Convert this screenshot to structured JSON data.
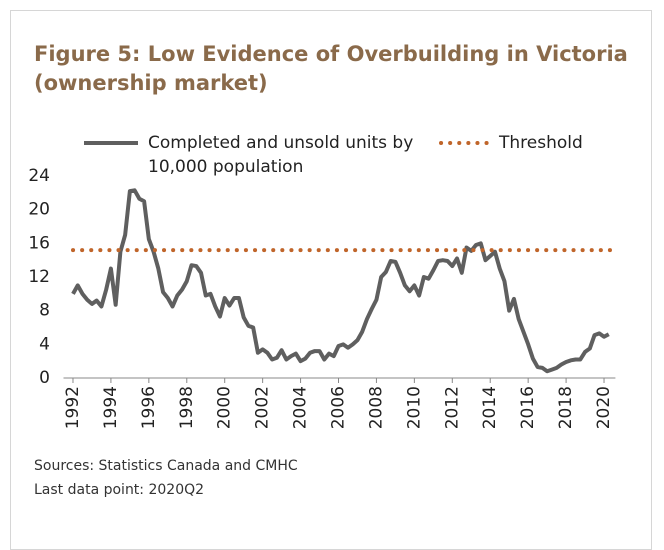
{
  "chart_data": {
    "type": "line",
    "title": "Figure 5: Low Evidence of Overbuilding in Victoria (ownership market)",
    "notes": [
      "Sources: Statistics Canada and CMHC",
      "Last data point: 2020Q2"
    ],
    "x": [
      1992,
      1992.25,
      1992.5,
      1992.75,
      1993,
      1993.25,
      1993.5,
      1993.75,
      1994,
      1994.25,
      1994.5,
      1994.75,
      1995,
      1995.25,
      1995.5,
      1995.75,
      1996,
      1996.25,
      1996.5,
      1996.75,
      1997,
      1997.25,
      1997.5,
      1997.75,
      1998,
      1998.25,
      1998.5,
      1998.75,
      1999,
      1999.25,
      1999.5,
      1999.75,
      2000,
      2000.25,
      2000.5,
      2000.75,
      2001,
      2001.25,
      2001.5,
      2001.75,
      2002,
      2002.25,
      2002.5,
      2002.75,
      2003,
      2003.25,
      2003.5,
      2003.75,
      2004,
      2004.25,
      2004.5,
      2004.75,
      2005,
      2005.25,
      2005.5,
      2005.75,
      2006,
      2006.25,
      2006.5,
      2006.75,
      2007,
      2007.25,
      2007.5,
      2007.75,
      2008,
      2008.25,
      2008.5,
      2008.75,
      2009,
      2009.25,
      2009.5,
      2009.75,
      2010,
      2010.25,
      2010.5,
      2010.75,
      2011,
      2011.25,
      2011.5,
      2011.75,
      2012,
      2012.25,
      2012.5,
      2012.75,
      2013,
      2013.25,
      2013.5,
      2013.75,
      2014,
      2014.25,
      2014.5,
      2014.75,
      2015,
      2015.25,
      2015.5,
      2015.75,
      2016,
      2016.25,
      2016.5,
      2016.75,
      2017,
      2017.25,
      2017.5,
      2017.75,
      2018,
      2018.25,
      2018.5,
      2018.75,
      2019,
      2019.25,
      2019.5,
      2019.75,
      2020,
      2020.25
    ],
    "series": [
      {
        "name": "Completed and unsold units by 10,000 population",
        "color": "#5f5f5f",
        "values": [
          10,
          11,
          10,
          9.3,
          8.8,
          9.2,
          8.5,
          10.5,
          13,
          8.7,
          15,
          17,
          22.2,
          22.3,
          21.3,
          21,
          16.5,
          15,
          13,
          10.2,
          9.5,
          8.5,
          9.8,
          10.5,
          11.5,
          13.4,
          13.3,
          12.5,
          9.8,
          10,
          8.5,
          7.3,
          9.5,
          8.6,
          9.5,
          9.5,
          7.2,
          6.2,
          6,
          3,
          3.4,
          3,
          2.2,
          2.4,
          3.3,
          2.2,
          2.6,
          2.9,
          2,
          2.3,
          3,
          3.2,
          3.2,
          2.2,
          2.9,
          2.6,
          3.8,
          4,
          3.6,
          4,
          4.5,
          5.5,
          7,
          8.2,
          9.3,
          12,
          12.6,
          13.9,
          13.8,
          12.5,
          11,
          10.3,
          11,
          9.8,
          12,
          11.8,
          12.8,
          13.9,
          14,
          13.9,
          13.3,
          14.2,
          12.5,
          15.5,
          15.1,
          15.8,
          16,
          14,
          14.5,
          15,
          13,
          11.5,
          8,
          9.4,
          7,
          5.5,
          4,
          2.3,
          1.3,
          1.2,
          0.8,
          1,
          1.2,
          1.6,
          1.9,
          2.1,
          2.2,
          2.2,
          3.1,
          3.5,
          5.1,
          5.3,
          4.9,
          5.2
        ]
      }
    ],
    "threshold": {
      "name": "Threshold",
      "value": 15.2,
      "color": "#c0652a"
    },
    "xlim": [
      1991.5,
      2020.6
    ],
    "xticks": [
      1992,
      1994,
      1996,
      1998,
      2000,
      2002,
      2004,
      2006,
      2008,
      2010,
      2012,
      2014,
      2016,
      2018,
      2020
    ],
    "ylim": [
      0,
      24
    ],
    "yticks": [
      0,
      4,
      8,
      12,
      16,
      20,
      24
    ]
  }
}
